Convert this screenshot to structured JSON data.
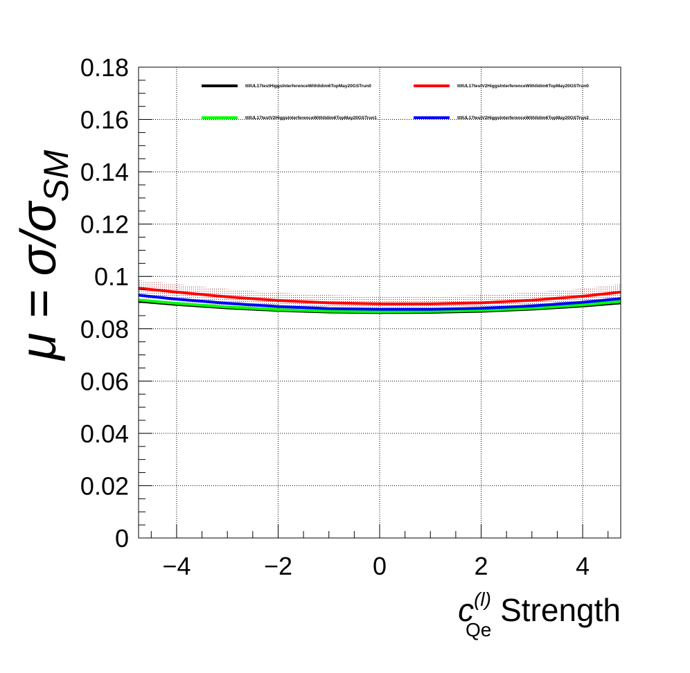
{
  "chart_data": {
    "type": "line",
    "title": "",
    "xlabel": {
      "symbol": "c",
      "superscript": "(l)",
      "subscript": "Qe",
      "suffix": " Strength"
    },
    "ylabel": {
      "prefix": "μ = σ/σ",
      "subscript": "SM"
    },
    "xlim": [
      -4.75,
      4.75
    ],
    "ylim": [
      0,
      0.18
    ],
    "xticks": [
      -4,
      -2,
      0,
      2,
      4
    ],
    "xtick_labels": [
      "−4",
      "−2",
      "0",
      "2",
      "4"
    ],
    "yticks": [
      0,
      0.02,
      0.04,
      0.06,
      0.08,
      0.1,
      0.12,
      0.14,
      0.16,
      0.18
    ],
    "ytick_labels": [
      "0",
      "0.02",
      "0.04",
      "0.06",
      "0.08",
      "0.1",
      "0.12",
      "0.14",
      "0.16",
      "0.18"
    ],
    "grid": true,
    "legend_position": "top",
    "band_color": "#8b0000",
    "series": [
      {
        "name": "ttllUL17testHiggsInterferenceWithlldim6TopMay20GSTrun0",
        "color": "#000000",
        "x": [
          -4.75,
          -4,
          -3,
          -2,
          -1,
          0,
          1,
          2,
          3,
          4,
          4.75
        ],
        "y": [
          0.0905,
          0.0893,
          0.088,
          0.087,
          0.0864,
          0.0862,
          0.0863,
          0.0867,
          0.0875,
          0.0887,
          0.0899
        ],
        "band": 0.0006
      },
      {
        "name": "ttllUL17testV2HiggsInterferenceWithlldim6TopMay20GSTrun0",
        "color": "#ff0000",
        "x": [
          -4.75,
          -4,
          -3,
          -2,
          -1,
          0,
          1,
          2,
          3,
          4,
          4.75
        ],
        "y": [
          0.0955,
          0.094,
          0.0922,
          0.0908,
          0.0899,
          0.0895,
          0.0895,
          0.0899,
          0.0909,
          0.0924,
          0.094
        ],
        "band": 0.003
      },
      {
        "name": "ttllUL17testV2HiggsInterferenceWithlldim6TopMay20GSTrun1",
        "color": "#00ff00",
        "x": [
          -4.75,
          -4,
          -3,
          -2,
          -1,
          0,
          1,
          2,
          3,
          4,
          4.75
        ],
        "y": [
          0.091,
          0.0897,
          0.0883,
          0.0873,
          0.0867,
          0.0865,
          0.0866,
          0.087,
          0.0878,
          0.0891,
          0.0904
        ],
        "band": 0.0006
      },
      {
        "name": "ttllUL17testV2HiggsInterferenceWithlldim6TopMay20GSTrun2",
        "color": "#0000ff",
        "x": [
          -4.75,
          -4,
          -3,
          -2,
          -1,
          0,
          1,
          2,
          3,
          4,
          4.75
        ],
        "y": [
          0.0928,
          0.0913,
          0.0897,
          0.0885,
          0.0877,
          0.0874,
          0.0874,
          0.0878,
          0.0887,
          0.0901,
          0.0915
        ],
        "band": 0.0008
      }
    ]
  }
}
